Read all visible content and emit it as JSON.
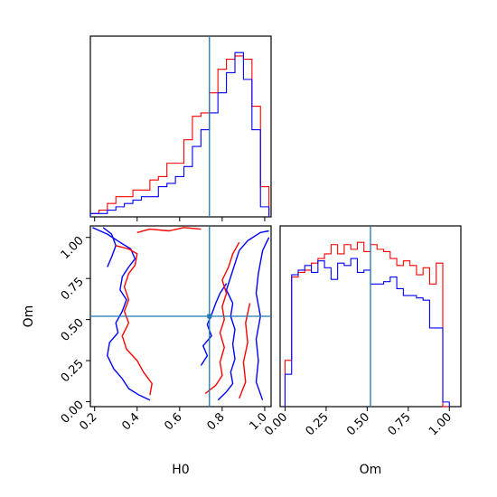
{
  "chart_data": [
    {
      "type": "histogram",
      "panel": "H0 marginal",
      "xlabel": "",
      "xlim": [
        0.18,
        1.03
      ],
      "truth": 0.74,
      "truth_color": "#1f77b4",
      "bin_edges": [
        0.18,
        0.22,
        0.26,
        0.3,
        0.34,
        0.38,
        0.42,
        0.46,
        0.5,
        0.54,
        0.58,
        0.62,
        0.66,
        0.7,
        0.74,
        0.78,
        0.82,
        0.86,
        0.9,
        0.94,
        0.98,
        1.02
      ],
      "series": [
        {
          "color": "#ff0000",
          "counts": [
            1,
            2,
            4,
            6,
            6,
            8,
            8,
            11,
            12,
            16,
            16,
            23,
            30,
            31,
            37,
            44,
            47,
            48,
            47,
            33,
            9
          ]
        },
        {
          "color": "#0000ff",
          "counts": [
            1,
            1,
            2,
            3,
            4,
            5,
            6,
            6,
            9,
            10,
            12,
            15,
            21,
            26,
            31,
            37,
            43,
            49,
            41,
            26,
            3
          ]
        }
      ],
      "tick_labels": [
        "0.2",
        "0.4",
        "0.6",
        "0.8",
        "1.0"
      ]
    },
    {
      "type": "contour",
      "panel": "H0 vs Om joint",
      "xlabel": "H0",
      "ylabel": "Om",
      "xlim": [
        0.18,
        1.03
      ],
      "ylim": [
        -0.03,
        1.07
      ],
      "truth": {
        "x": 0.74,
        "y": 0.52
      },
      "xtick_labels": [
        "0.2",
        "0.4",
        "0.6",
        "0.8",
        "1.0"
      ],
      "ytick_labels": [
        "0.00",
        "0.25",
        "0.50",
        "0.75",
        "1.00"
      ],
      "contours": [
        {
          "color": "#0000ff",
          "paths": [
            [
              [
                0.19,
                1.06
              ],
              [
                0.26,
                1.02
              ],
              [
                0.32,
                0.97
              ],
              [
                0.37,
                0.93
              ],
              [
                0.39,
                0.87
              ],
              [
                0.36,
                0.82
              ],
              [
                0.33,
                0.76
              ],
              [
                0.32,
                0.68
              ],
              [
                0.35,
                0.62
              ],
              [
                0.33,
                0.55
              ],
              [
                0.3,
                0.48
              ],
              [
                0.31,
                0.42
              ],
              [
                0.27,
                0.36
              ],
              [
                0.26,
                0.28
              ],
              [
                0.29,
                0.2
              ],
              [
                0.33,
                0.14
              ],
              [
                0.36,
                0.08
              ],
              [
                0.41,
                0.04
              ],
              [
                0.46,
                0.01
              ]
            ],
            [
              [
                0.24,
                1.06
              ],
              [
                0.28,
                1.02
              ],
              [
                0.3,
                0.95
              ],
              [
                0.28,
                0.88
              ],
              [
                0.26,
                0.82
              ]
            ],
            [
              [
                0.78,
                0.01
              ],
              [
                0.82,
                0.06
              ],
              [
                0.85,
                0.11
              ],
              [
                0.84,
                0.18
              ],
              [
                0.86,
                0.26
              ],
              [
                0.85,
                0.35
              ],
              [
                0.86,
                0.44
              ],
              [
                0.84,
                0.52
              ],
              [
                0.85,
                0.6
              ],
              [
                0.82,
                0.68
              ],
              [
                0.84,
                0.76
              ],
              [
                0.86,
                0.84
              ],
              [
                0.88,
                0.92
              ],
              [
                0.92,
                0.98
              ],
              [
                0.98,
                1.03
              ],
              [
                1.02,
                1.04
              ]
            ],
            [
              [
                0.99,
                0.01
              ],
              [
                0.96,
                0.12
              ],
              [
                0.97,
                0.25
              ],
              [
                0.96,
                0.38
              ],
              [
                0.98,
                0.52
              ],
              [
                0.96,
                0.66
              ],
              [
                0.97,
                0.78
              ],
              [
                0.99,
                0.92
              ],
              [
                1.02,
                1.0
              ]
            ],
            [
              [
                0.7,
                0.22
              ],
              [
                0.73,
                0.28
              ],
              [
                0.71,
                0.34
              ],
              [
                0.75,
                0.4
              ],
              [
                0.73,
                0.47
              ],
              [
                0.75,
                0.53
              ],
              [
                0.77,
                0.6
              ],
              [
                0.79,
                0.66
              ],
              [
                0.82,
                0.72
              ]
            ]
          ]
        },
        {
          "color": "#ff0000",
          "paths": [
            [
              [
                0.4,
                1.03
              ],
              [
                0.46,
                1.05
              ],
              [
                0.55,
                1.04
              ],
              [
                0.62,
                1.06
              ],
              [
                0.7,
                1.05
              ]
            ],
            [
              [
                0.3,
                0.95
              ],
              [
                0.36,
                0.93
              ],
              [
                0.4,
                0.9
              ],
              [
                0.39,
                0.83
              ],
              [
                0.36,
                0.78
              ],
              [
                0.34,
                0.7
              ],
              [
                0.36,
                0.62
              ],
              [
                0.34,
                0.55
              ],
              [
                0.36,
                0.48
              ],
              [
                0.33,
                0.4
              ],
              [
                0.35,
                0.32
              ],
              [
                0.4,
                0.25
              ],
              [
                0.43,
                0.18
              ],
              [
                0.47,
                0.11
              ],
              [
                0.46,
                0.04
              ]
            ],
            [
              [
                0.72,
                0.05
              ],
              [
                0.77,
                0.1
              ],
              [
                0.8,
                0.16
              ],
              [
                0.79,
                0.24
              ],
              [
                0.81,
                0.33
              ],
              [
                0.79,
                0.42
              ],
              [
                0.81,
                0.5
              ],
              [
                0.8,
                0.58
              ],
              [
                0.82,
                0.66
              ],
              [
                0.8,
                0.74
              ],
              [
                0.83,
                0.82
              ],
              [
                0.85,
                0.9
              ],
              [
                0.88,
                0.97
              ]
            ],
            [
              [
                0.88,
                0.02
              ],
              [
                0.91,
                0.12
              ],
              [
                0.9,
                0.24
              ],
              [
                0.92,
                0.36
              ],
              [
                0.91,
                0.48
              ],
              [
                0.93,
                0.6
              ]
            ]
          ]
        }
      ]
    },
    {
      "type": "histogram",
      "panel": "Om marginal",
      "xlabel": "Om",
      "xlim": [
        -0.03,
        1.07
      ],
      "truth": 0.52,
      "truth_color": "#1f77b4",
      "bin_edges": [
        0.0,
        0.04,
        0.08,
        0.12,
        0.16,
        0.2,
        0.24,
        0.28,
        0.32,
        0.36,
        0.4,
        0.44,
        0.48,
        0.52,
        0.56,
        0.6,
        0.64,
        0.68,
        0.72,
        0.76,
        0.8,
        0.84,
        0.88,
        0.92,
        0.96,
        1.0
      ],
      "series": [
        {
          "color": "#ff0000",
          "counts": [
            20,
            56,
            58,
            59,
            62,
            64,
            66,
            70,
            66,
            70,
            68,
            71,
            67,
            70,
            68,
            67,
            64,
            61,
            63,
            61,
            57,
            60,
            53,
            62,
            0
          ]
        },
        {
          "color": "#0000ff",
          "counts": [
            14,
            57,
            59,
            61,
            58,
            63,
            60,
            55,
            62,
            61,
            64,
            58,
            59,
            53,
            53,
            54,
            56,
            51,
            48,
            48,
            47,
            46,
            34,
            34,
            2
          ]
        }
      ],
      "tick_labels": [
        "0.00",
        "0.25",
        "0.50",
        "0.75",
        "1.00"
      ]
    }
  ]
}
